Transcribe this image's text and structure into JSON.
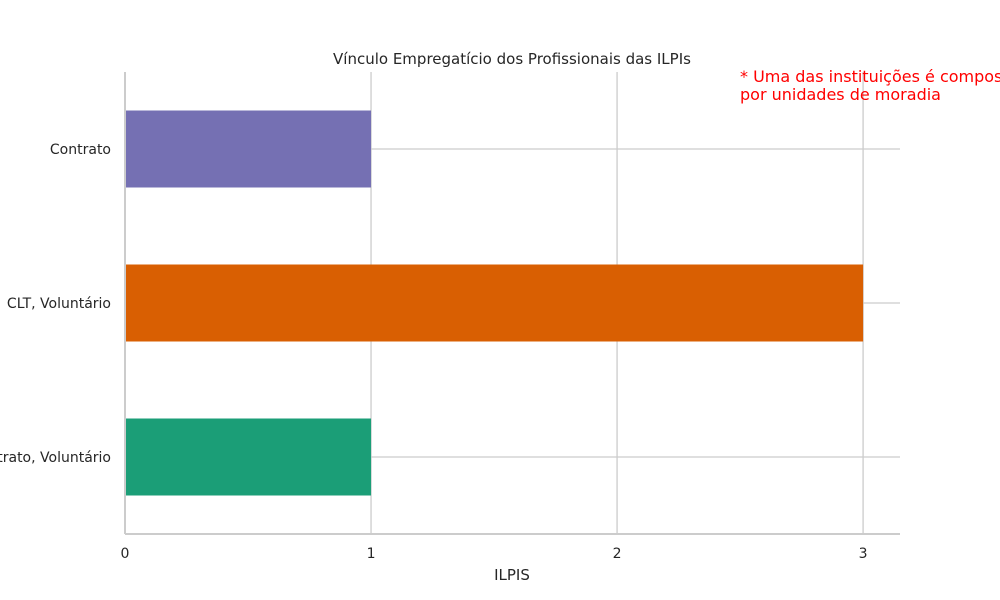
{
  "chart_data": {
    "type": "bar",
    "orientation": "horizontal",
    "title": "Vínculo Empregatício dos Profissionais das ILPIs",
    "xlabel": "ILPIS",
    "ylabel": "",
    "categories": [
      "Contrato",
      "CLT, Voluntário",
      "Contrato, Voluntário"
    ],
    "values": [
      1,
      3,
      1
    ],
    "colors": [
      "#7570b3",
      "#d95f02",
      "#1b9e77"
    ],
    "xlim": [
      0,
      3.15
    ],
    "xticks": [
      0,
      1,
      2,
      3
    ],
    "grid": true,
    "annotation": {
      "line1": "* Uma das instituições é composta",
      "line2": "por unidades de moradia",
      "color": "#ff0000"
    }
  }
}
